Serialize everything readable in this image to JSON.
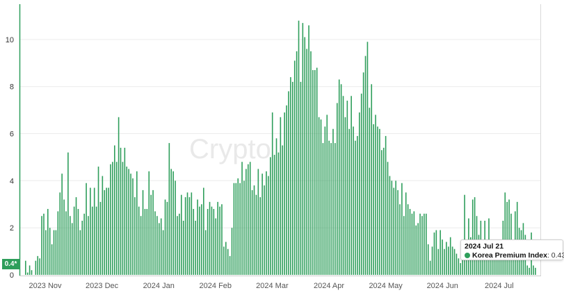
{
  "chart_data": {
    "type": "bar",
    "ylim": [
      0,
      11.5
    ],
    "yticks": [
      "0",
      "2",
      "4",
      "6",
      "8",
      "10"
    ],
    "xticks": [
      "2023 Nov",
      "2023 Dec",
      "2024 Jan",
      "2024 Feb",
      "2024 Mar",
      "2024 Apr",
      "2024 May",
      "2024 Jun",
      "2024 Jul"
    ],
    "grid": true,
    "watermark": "Crypto",
    "series": [
      {
        "name": "Korea Premium Index",
        "color": "#2e9e5b",
        "values": [
          0.6,
          0.1,
          0.4,
          0.2,
          0,
          0.6,
          0.8,
          0.7,
          2.5,
          2.6,
          1.9,
          2.8,
          2.0,
          1.3,
          1.9,
          1.9,
          2.7,
          3.5,
          4.3,
          3.2,
          2.7,
          5.2,
          2.5,
          2.2,
          2.9,
          3.3,
          2.8,
          1.9,
          2.3,
          2.6,
          3.9,
          2.5,
          3.7,
          2.9,
          3.7,
          2.9,
          4.6,
          3.1,
          4.2,
          3.6,
          3.7,
          3.7,
          4.7,
          4.8,
          5.5,
          4.8,
          6.7,
          5.4,
          4.8,
          5.4,
          4.6,
          4.5,
          4.3,
          4.1,
          3.3,
          4.4,
          2.9,
          2.5,
          3.6,
          2.8,
          2.8,
          4.4,
          3.4,
          3.6,
          2.7,
          2.5,
          2.2,
          2.4,
          1.9,
          3.2,
          3.1,
          5.6,
          4.5,
          4.4,
          4.0,
          2.5,
          2.6,
          3.4,
          2.3,
          3.3,
          3.5,
          3.3,
          3.5,
          2.8,
          2.3,
          3.2,
          2.9,
          3.0,
          3.7,
          1.9,
          2.8,
          3.1,
          2.9,
          2.8,
          2.4,
          3.1,
          2.9,
          3.0,
          1.2,
          1.4,
          1.1,
          0.8,
          2.0,
          3.9,
          3.9,
          4.1,
          3.9,
          4.8,
          4.0,
          4.5,
          4.7,
          4.8,
          3.6,
          3.8,
          3.4,
          4.5,
          3.3,
          4.3,
          3.8,
          4.4,
          4.2,
          5.0,
          6.9,
          5.1,
          5.8,
          5.2,
          6.7,
          5.5,
          6.9,
          7.2,
          7.8,
          8.4,
          8.2,
          9.1,
          9.5,
          10.8,
          8.2,
          10.7,
          10.1,
          9.6,
          10.6,
          9.5,
          8.7,
          8.7,
          8.8,
          6.7,
          6.6,
          5.6,
          6.3,
          6.8,
          5.7,
          5.6,
          6.2,
          5.6,
          7.3,
          8.3,
          8.1,
          7.6,
          6.7,
          7.4,
          6.2,
          7.6,
          6.3,
          5.7,
          5.9,
          6.9,
          7.7,
          8.6,
          9.3,
          9.9,
          7.1,
          8.1,
          6.4,
          6.8,
          6.3,
          6.2,
          5.3,
          5.4,
          5.9,
          4.8,
          4.2,
          4.0,
          3.7,
          4.0,
          3.6,
          3.0,
          3.9,
          2.5,
          3.5,
          3.0,
          2.8,
          2.6,
          2.7,
          2.1,
          2.2,
          2.6,
          2.5,
          2.6,
          2.6,
          1.3,
          0.6,
          1.2,
          1.8,
          1.9,
          1.1,
          1.9,
          1.5,
          1.1,
          1.4,
          1.2,
          1.6,
          1.2,
          1.1,
          0.9,
          0.7,
          0.5,
          0.8,
          3.4,
          1.1,
          2.4,
          1.6,
          3.2,
          3.3,
          2.5,
          1.7,
          2.3,
          1.5,
          2.3,
          1.3,
          2.4,
          1.3,
          1.1,
          1.5,
          1.1,
          1.2,
          1.5,
          2.3,
          3.5,
          3.1,
          3.2,
          2.6,
          1.5,
          2.7,
          3.1,
          2.0,
          1.9,
          2.2,
          1.7,
          0.4,
          0.3,
          1.8,
          0.4,
          0.3
        ]
      }
    ],
    "highlight": {
      "date": "2024 Jul 21",
      "series": "Korea Premium Index",
      "value": "0.43"
    },
    "current_badge": "0.4*"
  }
}
